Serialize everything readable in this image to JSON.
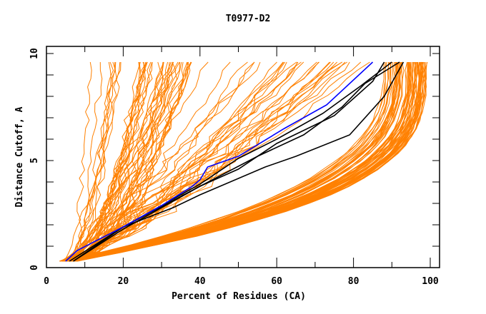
{
  "chart_data": {
    "type": "line",
    "title": "T0977-D2",
    "xlabel": "Percent of Residues (CA)",
    "ylabel": "Distance Cutoff, A",
    "xlim": [
      0,
      100
    ],
    "ylim": [
      0,
      10
    ],
    "x_ticks": [
      0,
      20,
      40,
      60,
      80,
      100
    ],
    "y_ticks": [
      0,
      5,
      10
    ],
    "grid": false,
    "legend": "none",
    "colors": {
      "background_models": "#ff8000",
      "highlight": "#0000ff",
      "reference": "#000000"
    },
    "series": [
      {
        "name": "highlight-model",
        "color": "#0000ff",
        "x": [
          5,
          8,
          20,
          30,
          38,
          40,
          42,
          50,
          62,
          73,
          85
        ],
        "y": [
          0.3,
          0.8,
          1.9,
          2.9,
          3.8,
          4.1,
          4.7,
          5.2,
          6.5,
          7.6,
          9.6
        ]
      },
      {
        "name": "reference-1",
        "color": "#000000",
        "x": [
          7,
          20,
          40,
          50,
          60,
          72,
          82,
          90
        ],
        "y": [
          0.3,
          1.9,
          3.9,
          5.1,
          6.0,
          7.2,
          8.5,
          9.6
        ]
      },
      {
        "name": "reference-2",
        "color": "#000000",
        "x": [
          7,
          20,
          40,
          55,
          67,
          77,
          83,
          92
        ],
        "y": [
          0.3,
          1.8,
          3.8,
          5.2,
          6.2,
          7.5,
          8.6,
          9.6
        ]
      },
      {
        "name": "reference-3",
        "color": "#000000",
        "x": [
          6,
          20,
          33,
          40,
          57,
          65,
          79,
          88,
          93
        ],
        "y": [
          0.3,
          1.9,
          2.8,
          3.4,
          4.7,
          5.2,
          6.2,
          8.0,
          9.6
        ]
      },
      {
        "name": "reference-4",
        "color": "#000000",
        "x": [
          7,
          20,
          40,
          50,
          60,
          75,
          85,
          88
        ],
        "y": [
          0.3,
          1.9,
          3.8,
          4.6,
          5.8,
          7.1,
          8.7,
          9.6
        ]
      }
    ],
    "model_bundles": [
      {
        "name": "steep-left-bundle",
        "count": 40,
        "x_start": [
          4,
          6
        ],
        "x_end": [
          11,
          40
        ],
        "curve": "steep"
      },
      {
        "name": "mid-diagonal-bundle",
        "count": 35,
        "x_start": [
          5,
          8
        ],
        "x_end": [
          30,
          85
        ],
        "curve": "diagonal"
      },
      {
        "name": "shallow-right-bundle",
        "count": 70,
        "x_start": [
          4,
          8
        ],
        "x_end": [
          86,
          99
        ],
        "curve": "knee"
      }
    ]
  }
}
